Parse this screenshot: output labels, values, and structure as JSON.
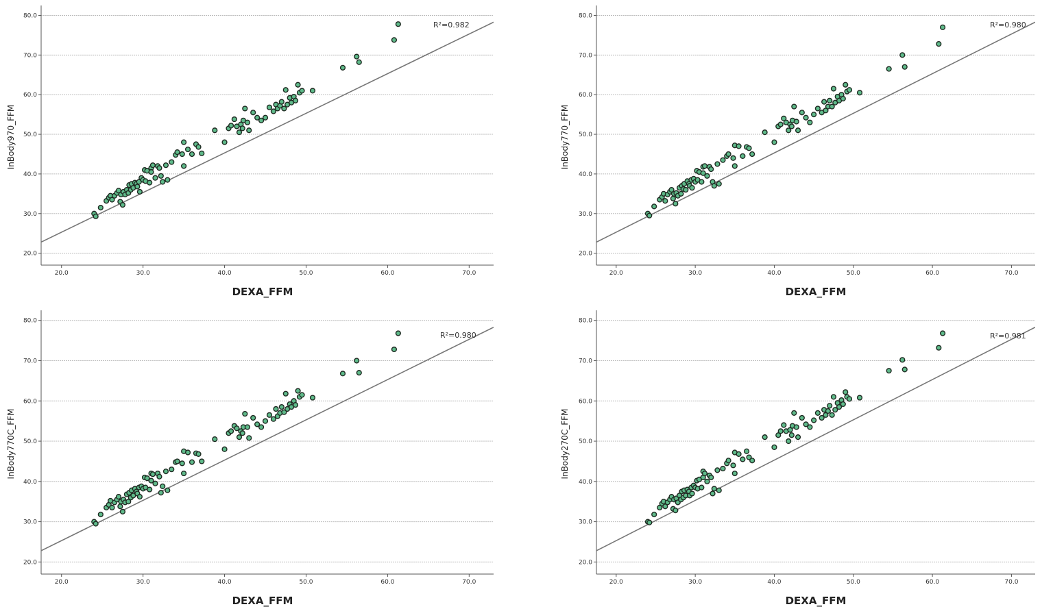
{
  "chart_data": [
    {
      "type": "scatter",
      "xlabel": "DEXA_FFM",
      "ylabel": "InBody970_FFM",
      "annotation": "R²=0.982",
      "xlim": [
        17.5,
        73
      ],
      "ylim": [
        17,
        82.5
      ],
      "xticks": [
        "20.0",
        "30.0",
        "40.0",
        "50.0",
        "60.0",
        "70.0"
      ],
      "yticks": [
        "20.0",
        "30.0",
        "40.0",
        "50.0",
        "60.0",
        "70.0",
        "80.0"
      ],
      "grid": "horizontal",
      "fit_line": {
        "slope": 1.0,
        "intercept": 5.3
      },
      "x": [
        24.0,
        24.2,
        24.8,
        25.5,
        25.8,
        26.0,
        26.2,
        26.5,
        26.8,
        27.0,
        27.2,
        27.3,
        27.5,
        27.6,
        27.8,
        28.0,
        28.2,
        28.3,
        28.5,
        28.6,
        28.8,
        29.0,
        29.2,
        29.3,
        29.5,
        29.6,
        29.8,
        30.0,
        30.2,
        30.3,
        30.5,
        30.8,
        31.0,
        31.0,
        31.2,
        31.5,
        31.8,
        32.0,
        32.2,
        32.4,
        32.8,
        33.0,
        33.5,
        34.0,
        34.2,
        34.8,
        35.0,
        35.0,
        35.5,
        36.0,
        36.5,
        36.8,
        37.2,
        38.8,
        40.0,
        40.5,
        40.8,
        41.2,
        41.5,
        41.8,
        42.0,
        42.2,
        42.3,
        42.5,
        42.8,
        43.0,
        43.5,
        44.0,
        44.5,
        45.0,
        45.5,
        46.0,
        46.3,
        46.5,
        46.8,
        47.0,
        47.3,
        47.5,
        47.7,
        48.0,
        48.2,
        48.5,
        48.7,
        49.0,
        49.2,
        49.5,
        50.8,
        54.5,
        56.2,
        56.5,
        60.8,
        61.3
      ],
      "y": [
        30.0,
        29.3,
        31.5,
        33.2,
        34.0,
        34.5,
        33.5,
        34.5,
        35.2,
        35.8,
        33.0,
        34.8,
        32.2,
        35.5,
        34.8,
        36.0,
        35.2,
        37.2,
        36.0,
        37.5,
        36.5,
        37.8,
        37.5,
        36.8,
        38.0,
        35.5,
        39.0,
        38.5,
        41.0,
        38.2,
        40.8,
        37.8,
        41.5,
        40.5,
        42.2,
        39.0,
        42.0,
        41.5,
        39.5,
        38.0,
        42.2,
        38.5,
        43.0,
        44.8,
        45.5,
        45.0,
        48.0,
        42.0,
        46.2,
        45.0,
        47.5,
        46.8,
        45.2,
        51.0,
        48.0,
        51.5,
        52.2,
        53.8,
        52.0,
        50.5,
        52.5,
        51.5,
        53.5,
        56.5,
        53.0,
        51.0,
        55.5,
        54.2,
        53.5,
        54.2,
        56.8,
        55.8,
        57.5,
        56.5,
        57.2,
        58.2,
        56.5,
        61.2,
        57.5,
        59.2,
        58.0,
        59.5,
        58.5,
        62.5,
        60.5,
        61.0,
        61.0,
        66.8,
        69.6,
        68.2,
        73.8,
        77.8
      ]
    },
    {
      "type": "scatter",
      "xlabel": "DEXA_FFM",
      "ylabel": "InBody770_FFM",
      "annotation": "R²=0.980",
      "xlim": [
        17.5,
        73
      ],
      "ylim": [
        17,
        82.5
      ],
      "xticks": [
        "20.0",
        "30.0",
        "40.0",
        "50.0",
        "60.0",
        "70.0"
      ],
      "yticks": [
        "20.0",
        "30.0",
        "40.0",
        "50.0",
        "60.0",
        "70.0",
        "80.0"
      ],
      "grid": "horizontal",
      "fit_line": {
        "slope": 1.0,
        "intercept": 5.3
      },
      "x": [
        24.0,
        24.2,
        24.8,
        25.5,
        25.8,
        26.0,
        26.2,
        26.5,
        26.8,
        27.0,
        27.2,
        27.3,
        27.5,
        27.6,
        27.8,
        28.0,
        28.2,
        28.3,
        28.5,
        28.6,
        28.8,
        29.0,
        29.2,
        29.3,
        29.5,
        29.6,
        29.8,
        30.0,
        30.2,
        30.3,
        30.5,
        30.8,
        31.0,
        31.0,
        31.2,
        31.5,
        31.8,
        32.0,
        32.2,
        32.4,
        32.8,
        33.0,
        33.5,
        34.0,
        34.2,
        34.8,
        35.0,
        35.0,
        35.5,
        36.0,
        36.5,
        36.8,
        37.2,
        38.8,
        40.0,
        40.5,
        40.8,
        41.2,
        41.5,
        41.8,
        42.0,
        42.2,
        42.3,
        42.5,
        42.8,
        43.0,
        43.5,
        44.0,
        44.5,
        45.0,
        45.5,
        46.0,
        46.3,
        46.5,
        46.8,
        47.0,
        47.3,
        47.5,
        47.7,
        48.0,
        48.2,
        48.5,
        48.7,
        49.0,
        49.2,
        49.5,
        50.8,
        54.5,
        56.2,
        56.5,
        60.8,
        61.3
      ],
      "y": [
        30.0,
        29.5,
        31.8,
        33.5,
        34.2,
        35.0,
        33.2,
        34.8,
        35.5,
        36.0,
        33.8,
        35.0,
        32.5,
        35.2,
        34.5,
        36.5,
        35.0,
        37.0,
        36.2,
        37.5,
        36.0,
        38.2,
        37.5,
        37.0,
        38.5,
        36.5,
        38.8,
        38.0,
        40.8,
        38.5,
        40.5,
        38.0,
        41.8,
        40.2,
        42.0,
        39.5,
        41.8,
        41.2,
        38.0,
        37.0,
        42.5,
        37.5,
        43.5,
        44.5,
        45.0,
        44.0,
        47.2,
        42.0,
        47.0,
        44.5,
        46.8,
        46.5,
        45.0,
        50.5,
        48.0,
        52.0,
        52.5,
        54.0,
        53.0,
        51.0,
        52.5,
        52.0,
        53.5,
        57.0,
        53.2,
        51.0,
        55.5,
        54.2,
        53.0,
        55.0,
        56.5,
        55.5,
        58.2,
        56.0,
        57.0,
        58.5,
        57.0,
        61.5,
        58.0,
        59.5,
        58.5,
        60.0,
        59.0,
        62.5,
        60.8,
        61.2,
        60.5,
        66.5,
        70.0,
        67.0,
        72.8,
        77.0
      ]
    },
    {
      "type": "scatter",
      "xlabel": "DEXA_FFM",
      "ylabel": "InBody770C_FFM",
      "annotation": "R²=0.980",
      "xlim": [
        17.5,
        73
      ],
      "ylim": [
        17,
        82.5
      ],
      "xticks": [
        "20.0",
        "30.0",
        "40.0",
        "50.0",
        "60.0",
        "70.0"
      ],
      "yticks": [
        "20.0",
        "30.0",
        "40.0",
        "50.0",
        "60.0",
        "70.0",
        "80.0"
      ],
      "grid": "horizontal",
      "fit_line": {
        "slope": 1.0,
        "intercept": 5.3
      },
      "x": [
        24.0,
        24.2,
        24.8,
        25.5,
        25.8,
        26.0,
        26.2,
        26.5,
        26.8,
        27.0,
        27.2,
        27.3,
        27.5,
        27.6,
        27.8,
        28.0,
        28.2,
        28.3,
        28.5,
        28.6,
        28.8,
        29.0,
        29.2,
        29.3,
        29.5,
        29.6,
        29.8,
        30.0,
        30.2,
        30.3,
        30.5,
        30.8,
        31.0,
        31.0,
        31.2,
        31.5,
        31.8,
        32.0,
        32.2,
        32.4,
        32.8,
        33.0,
        33.5,
        34.0,
        34.2,
        34.8,
        35.0,
        35.0,
        35.5,
        36.0,
        36.5,
        36.8,
        37.2,
        38.8,
        40.0,
        40.5,
        40.8,
        41.2,
        41.5,
        41.8,
        42.0,
        42.2,
        42.3,
        42.5,
        42.8,
        43.0,
        43.5,
        44.0,
        44.5,
        45.0,
        45.5,
        46.0,
        46.3,
        46.5,
        46.8,
        47.0,
        47.3,
        47.5,
        47.7,
        48.0,
        48.2,
        48.5,
        48.7,
        49.0,
        49.2,
        49.5,
        50.8,
        54.5,
        56.2,
        56.5,
        60.8,
        61.3
      ],
      "y": [
        30.0,
        29.5,
        31.8,
        33.5,
        34.2,
        35.2,
        33.5,
        34.8,
        35.5,
        36.2,
        33.8,
        35.0,
        32.5,
        35.5,
        34.8,
        36.8,
        35.0,
        37.2,
        36.0,
        37.8,
        36.5,
        38.2,
        37.5,
        37.0,
        38.5,
        36.2,
        38.8,
        38.2,
        41.0,
        38.5,
        40.8,
        38.0,
        42.0,
        40.2,
        41.8,
        39.5,
        42.0,
        41.2,
        37.2,
        38.8,
        42.5,
        37.8,
        43.0,
        44.8,
        45.0,
        44.5,
        47.5,
        42.0,
        47.2,
        44.8,
        47.0,
        46.8,
        45.0,
        50.5,
        48.0,
        52.0,
        52.5,
        53.8,
        53.2,
        51.0,
        52.5,
        52.0,
        53.5,
        56.8,
        53.5,
        50.8,
        55.8,
        54.2,
        53.5,
        55.0,
        56.5,
        55.5,
        58.0,
        56.2,
        57.0,
        58.5,
        57.2,
        61.8,
        58.0,
        59.2,
        58.5,
        60.0,
        59.0,
        62.5,
        61.0,
        61.5,
        60.8,
        66.8,
        70.0,
        67.0,
        72.8,
        76.8
      ]
    },
    {
      "type": "scatter",
      "xlabel": "DEXA_FFM",
      "ylabel": "InBody270C_FFM",
      "annotation": "R²=0.981",
      "xlim": [
        17.5,
        73
      ],
      "ylim": [
        17,
        82.5
      ],
      "xticks": [
        "20.0",
        "30.0",
        "40.0",
        "50.0",
        "60.0",
        "70.0"
      ],
      "yticks": [
        "20.0",
        "30.0",
        "40.0",
        "50.0",
        "60.0",
        "70.0",
        "80.0"
      ],
      "grid": "horizontal",
      "fit_line": {
        "slope": 1.0,
        "intercept": 5.3
      },
      "x": [
        24.0,
        24.2,
        24.8,
        25.5,
        25.8,
        26.0,
        26.2,
        26.5,
        26.8,
        27.0,
        27.2,
        27.3,
        27.5,
        27.6,
        27.8,
        28.0,
        28.2,
        28.3,
        28.5,
        28.6,
        28.8,
        29.0,
        29.2,
        29.3,
        29.5,
        29.6,
        29.8,
        30.0,
        30.2,
        30.3,
        30.5,
        30.8,
        31.0,
        31.0,
        31.2,
        31.5,
        31.8,
        32.0,
        32.2,
        32.4,
        32.8,
        33.0,
        33.5,
        34.0,
        34.2,
        34.8,
        35.0,
        35.0,
        35.5,
        36.0,
        36.5,
        36.8,
        37.2,
        38.8,
        40.0,
        40.5,
        40.8,
        41.2,
        41.5,
        41.8,
        42.0,
        42.2,
        42.3,
        42.5,
        42.8,
        43.0,
        43.5,
        44.0,
        44.5,
        45.0,
        45.5,
        46.0,
        46.3,
        46.5,
        46.8,
        47.0,
        47.3,
        47.5,
        47.7,
        48.0,
        48.2,
        48.5,
        48.7,
        49.0,
        49.2,
        49.5,
        50.8,
        54.5,
        56.2,
        56.5,
        60.8,
        61.3
      ],
      "y": [
        30.0,
        29.8,
        31.8,
        33.5,
        34.5,
        35.0,
        33.8,
        34.8,
        35.5,
        36.2,
        33.2,
        35.5,
        32.8,
        35.8,
        34.8,
        36.5,
        35.5,
        37.5,
        36.0,
        37.8,
        36.5,
        38.0,
        37.5,
        36.5,
        38.5,
        37.0,
        39.0,
        38.5,
        40.2,
        38.2,
        40.5,
        38.5,
        42.5,
        41.0,
        42.0,
        40.0,
        41.5,
        41.0,
        37.0,
        38.2,
        42.8,
        37.8,
        43.2,
        44.5,
        45.2,
        44.0,
        47.2,
        42.0,
        46.8,
        45.5,
        47.5,
        46.0,
        45.2,
        51.0,
        48.5,
        51.5,
        52.5,
        54.0,
        52.5,
        50.0,
        52.8,
        51.5,
        53.8,
        57.0,
        53.5,
        51.0,
        55.8,
        54.2,
        53.5,
        55.2,
        57.0,
        55.8,
        57.8,
        56.5,
        57.5,
        58.8,
        56.5,
        61.0,
        57.8,
        59.5,
        58.5,
        60.2,
        59.2,
        62.2,
        61.0,
        60.5,
        60.8,
        67.5,
        70.2,
        67.8,
        73.2,
        76.8
      ]
    }
  ]
}
